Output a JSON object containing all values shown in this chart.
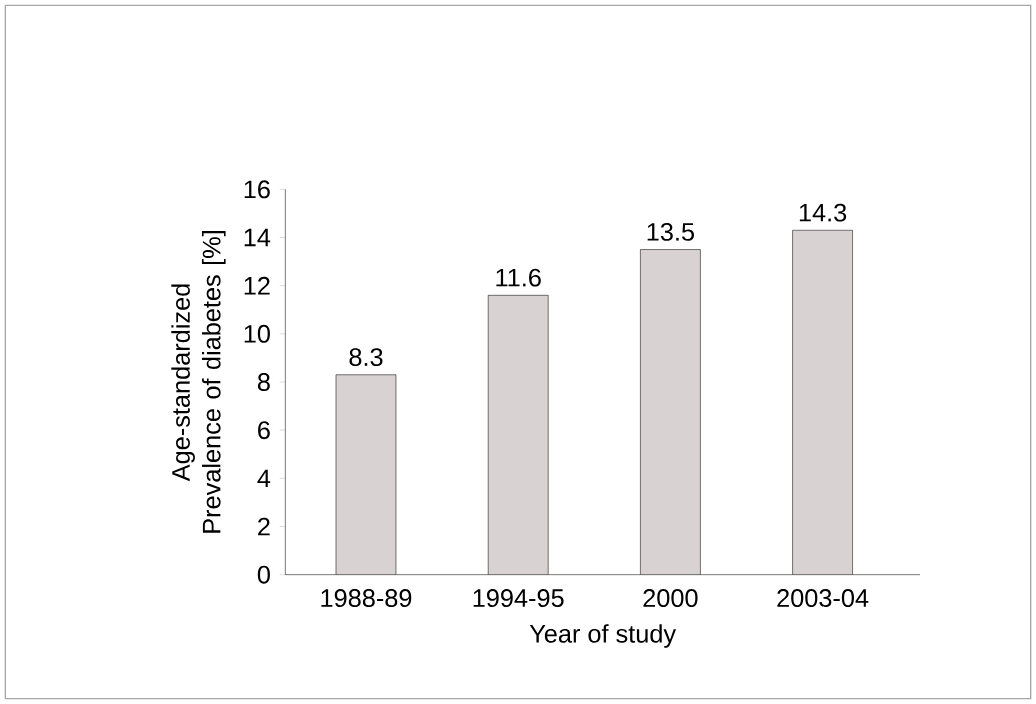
{
  "chart_data": {
    "type": "bar",
    "xlabel": "Year of study",
    "ylabel": "Age-standardized Prevalence of diabetes [%]",
    "categories": [
      "1988-89",
      "1994-95",
      "2000",
      "2003-04"
    ],
    "values": [
      8.3,
      11.6,
      13.5,
      14.3
    ],
    "color": "#d9d2d2",
    "ylim": [
      0,
      16
    ],
    "yticks": [
      0,
      2,
      4,
      6,
      8,
      10,
      12,
      14,
      16
    ],
    "data_labels": true
  }
}
